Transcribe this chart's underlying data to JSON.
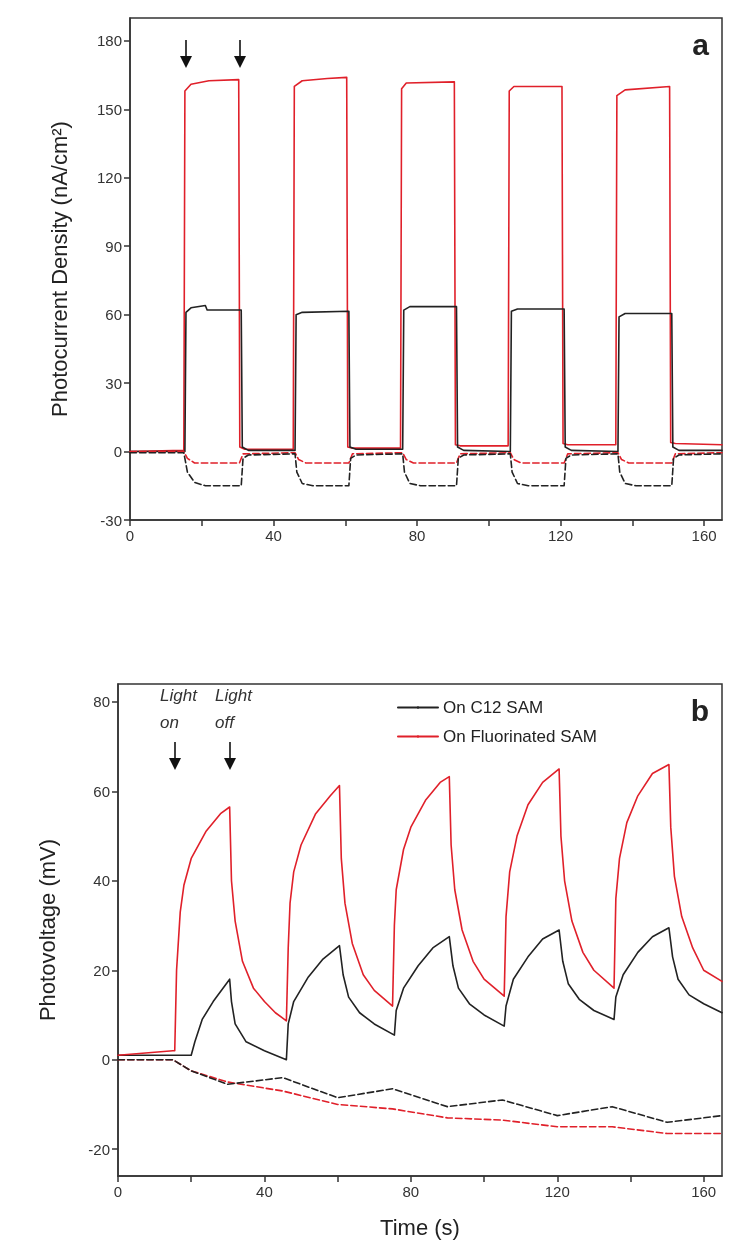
{
  "chart_data": [
    {
      "type": "line",
      "title": "a",
      "ylabel": "Photocurrent Density (nA/cm²)",
      "xlim": [
        0,
        165
      ],
      "xticks": [
        0,
        {
          "value": 20,
          "label": null
        },
        40,
        {
          "value": 60,
          "label": null
        },
        80,
        {
          "value": 100,
          "label": null
        },
        120,
        {
          "value": 140,
          "label": null
        },
        160
      ],
      "ylim": [
        -30,
        190
      ],
      "yticks": [
        -30,
        0,
        30,
        60,
        90,
        120,
        150,
        180
      ],
      "grid": false,
      "legend": false,
      "marker": "none",
      "series": [
        {
          "color": "#e0202a",
          "line_style": "solid",
          "x": [
            0,
            15,
            15.3,
            17,
            22,
            30.3,
            30.6,
            32,
            45.5,
            45.8,
            48,
            55,
            60.4,
            60.7,
            62,
            75.4,
            75.7,
            77,
            90.4,
            90.7,
            92,
            105.4,
            105.7,
            107,
            120.4,
            120.7,
            122,
            135.4,
            135.7,
            138,
            150.4,
            150.7,
            152,
            165
          ],
          "values": [
            0,
            0.5,
            158,
            161,
            162.5,
            163,
            2,
            1,
            1,
            160,
            162.5,
            163.5,
            164,
            2,
            1.5,
            1.5,
            159,
            161.5,
            162,
            3,
            2.5,
            2.5,
            158,
            160,
            160,
            3.5,
            3,
            3,
            156,
            158.5,
            160,
            4,
            3.5,
            3
          ]
        },
        {
          "color": "#222222",
          "line_style": "solid",
          "x": [
            0,
            15.3,
            15.6,
            17,
            21,
            21.5,
            31,
            31.3,
            33,
            46,
            46.3,
            48,
            61,
            61.3,
            63,
            76,
            76.3,
            78,
            91,
            91.3,
            93,
            106,
            106.3,
            108,
            121,
            121.3,
            123,
            136,
            136.3,
            138,
            151,
            151.3,
            153,
            165
          ],
          "values": [
            0,
            0,
            61,
            63,
            64,
            62,
            62,
            2,
            0.5,
            0.5,
            60,
            61,
            61.5,
            2,
            1,
            1,
            62,
            63.5,
            63.5,
            2,
            0.5,
            0,
            61.5,
            62.5,
            62.5,
            2,
            0.5,
            0,
            59,
            60.5,
            60.5,
            2,
            0.5,
            0.5
          ]
        },
        {
          "color": "#e0202a",
          "line_style": "dashed",
          "x": [
            0,
            15,
            16,
            18,
            30.5,
            31.5,
            46,
            47,
            49,
            61,
            62,
            76,
            77,
            79,
            91,
            92,
            106,
            107,
            109,
            121,
            122,
            136,
            137,
            139,
            151,
            152,
            165
          ],
          "values": [
            0,
            0,
            -3,
            -5,
            -5,
            -1,
            -0.5,
            -3.5,
            -5,
            -5,
            -1,
            -0.5,
            -3.5,
            -5,
            -5,
            -1,
            -0.5,
            -3.5,
            -5,
            -5,
            -1,
            -0.5,
            -3.5,
            -5,
            -5,
            -1,
            -0.5
          ]
        },
        {
          "color": "#222222",
          "line_style": "dashed",
          "x": [
            0,
            15,
            16,
            18,
            21,
            31,
            31.5,
            33,
            46,
            46.5,
            48,
            51,
            61,
            61.5,
            63,
            76,
            76.5,
            78,
            81,
            91,
            91.5,
            93,
            106,
            106.5,
            108,
            111,
            121,
            121.5,
            123,
            136,
            136.5,
            138,
            141,
            151,
            151.5,
            153,
            165
          ],
          "values": [
            -0.5,
            -0.5,
            -9,
            -13.5,
            -15,
            -15,
            -3,
            -1.5,
            -1,
            -9,
            -14,
            -15,
            -15,
            -3,
            -1.5,
            -1,
            -9,
            -14,
            -15,
            -15,
            -3,
            -1.5,
            -1,
            -9,
            -14,
            -15,
            -15,
            -3,
            -1.5,
            -1,
            -9,
            -14,
            -15,
            -15,
            -3,
            -1.5,
            -1
          ]
        }
      ]
    },
    {
      "type": "line",
      "title": "b",
      "xlabel": "Time (s)",
      "ylabel": "Photovoltage (mV)",
      "xlim": [
        0,
        165
      ],
      "xticks": [
        0,
        {
          "value": 20,
          "label": null
        },
        40,
        {
          "value": 60,
          "label": null
        },
        80,
        {
          "value": 100,
          "label": null
        },
        120,
        {
          "value": 140,
          "label": null
        },
        160
      ],
      "ylim": [
        -26,
        84
      ],
      "yticks": [
        -20,
        0,
        20,
        40,
        60,
        80
      ],
      "grid": false,
      "legend": "top right",
      "marker": "none",
      "annotations": [
        "Light on",
        "Light off"
      ],
      "series": [
        {
          "name": "On C12 SAM",
          "color": "#222222",
          "line_style": "solid",
          "x": [
            0,
            15,
            20,
            21,
            23,
            26,
            30.5,
            31,
            32,
            35,
            40,
            46,
            46.5,
            48,
            52,
            56,
            60.5,
            61.5,
            63,
            66,
            70,
            75.5,
            76,
            78,
            82,
            86,
            90.5,
            91.5,
            93,
            96,
            100,
            105.5,
            106,
            108,
            112,
            116,
            120.5,
            121.5,
            123,
            126,
            130,
            135.5,
            136,
            138,
            142,
            146,
            150.5,
            151.5,
            153,
            156,
            160,
            165
          ],
          "values": [
            1,
            1,
            1,
            4,
            9,
            13,
            18,
            13,
            8,
            4,
            2,
            0,
            8,
            13,
            18.5,
            22.5,
            25.5,
            19,
            14,
            10.5,
            8,
            5.5,
            11,
            16,
            21,
            25,
            27.5,
            21,
            16,
            12.5,
            10,
            7.5,
            12,
            18,
            23,
            27,
            29,
            22,
            17,
            13.5,
            11,
            9,
            14,
            19,
            24,
            27.5,
            29.5,
            23,
            18,
            14.5,
            12.5,
            10.5
          ]
        },
        {
          "name": "On Fluorinated SAM",
          "color": "#e0202a",
          "line_style": "solid",
          "x": [
            0,
            15,
            15.5,
            16,
            17,
            18,
            20,
            24,
            28,
            30.5,
            31,
            32,
            34,
            37,
            40,
            43,
            46,
            46.5,
            47,
            48,
            50,
            54,
            58,
            60.5,
            61,
            62,
            64,
            67,
            70,
            75,
            75.5,
            76,
            78,
            80,
            84,
            88,
            90.5,
            91,
            92,
            94,
            97,
            100,
            105.5,
            106,
            107,
            109,
            112,
            116,
            120.5,
            121,
            122,
            124,
            127,
            130,
            135.5,
            136,
            137,
            139,
            142,
            146,
            150.5,
            151,
            152,
            154,
            157,
            160,
            165
          ],
          "values": [
            1,
            2,
            2,
            20,
            33,
            39,
            45,
            51,
            55,
            56.5,
            40,
            31,
            22,
            16,
            13,
            10.5,
            8.7,
            25,
            35,
            42,
            48,
            55,
            59,
            61.3,
            45,
            35,
            26,
            19,
            15.5,
            12,
            30,
            38,
            47,
            52,
            58,
            62,
            63.3,
            48,
            38,
            29,
            22,
            18,
            14.2,
            32,
            42,
            50,
            57,
            62,
            65,
            50,
            40,
            31,
            24,
            20,
            16,
            36,
            45,
            53,
            59,
            64,
            66,
            52,
            41,
            32,
            25,
            20,
            17.5
          ]
        },
        {
          "color": "#e0202a",
          "line_style": "dashed",
          "x": [
            0,
            15,
            20,
            30,
            45,
            60,
            75,
            90,
            105,
            120,
            135,
            150,
            165
          ],
          "values": [
            0,
            0,
            -2.5,
            -5,
            -7,
            -10,
            -11,
            -13,
            -13.5,
            -15,
            -15,
            -16.5,
            -16.5
          ]
        },
        {
          "color": "#222222",
          "line_style": "dashed",
          "x": [
            0,
            15,
            20,
            30,
            45,
            60,
            75,
            90,
            105,
            120,
            135,
            150,
            165
          ],
          "values": [
            0,
            0,
            -2.5,
            -5.5,
            -4,
            -8.5,
            -6.5,
            -10.5,
            -9,
            -12.5,
            -10.5,
            -14,
            -12.5
          ]
        }
      ]
    }
  ]
}
